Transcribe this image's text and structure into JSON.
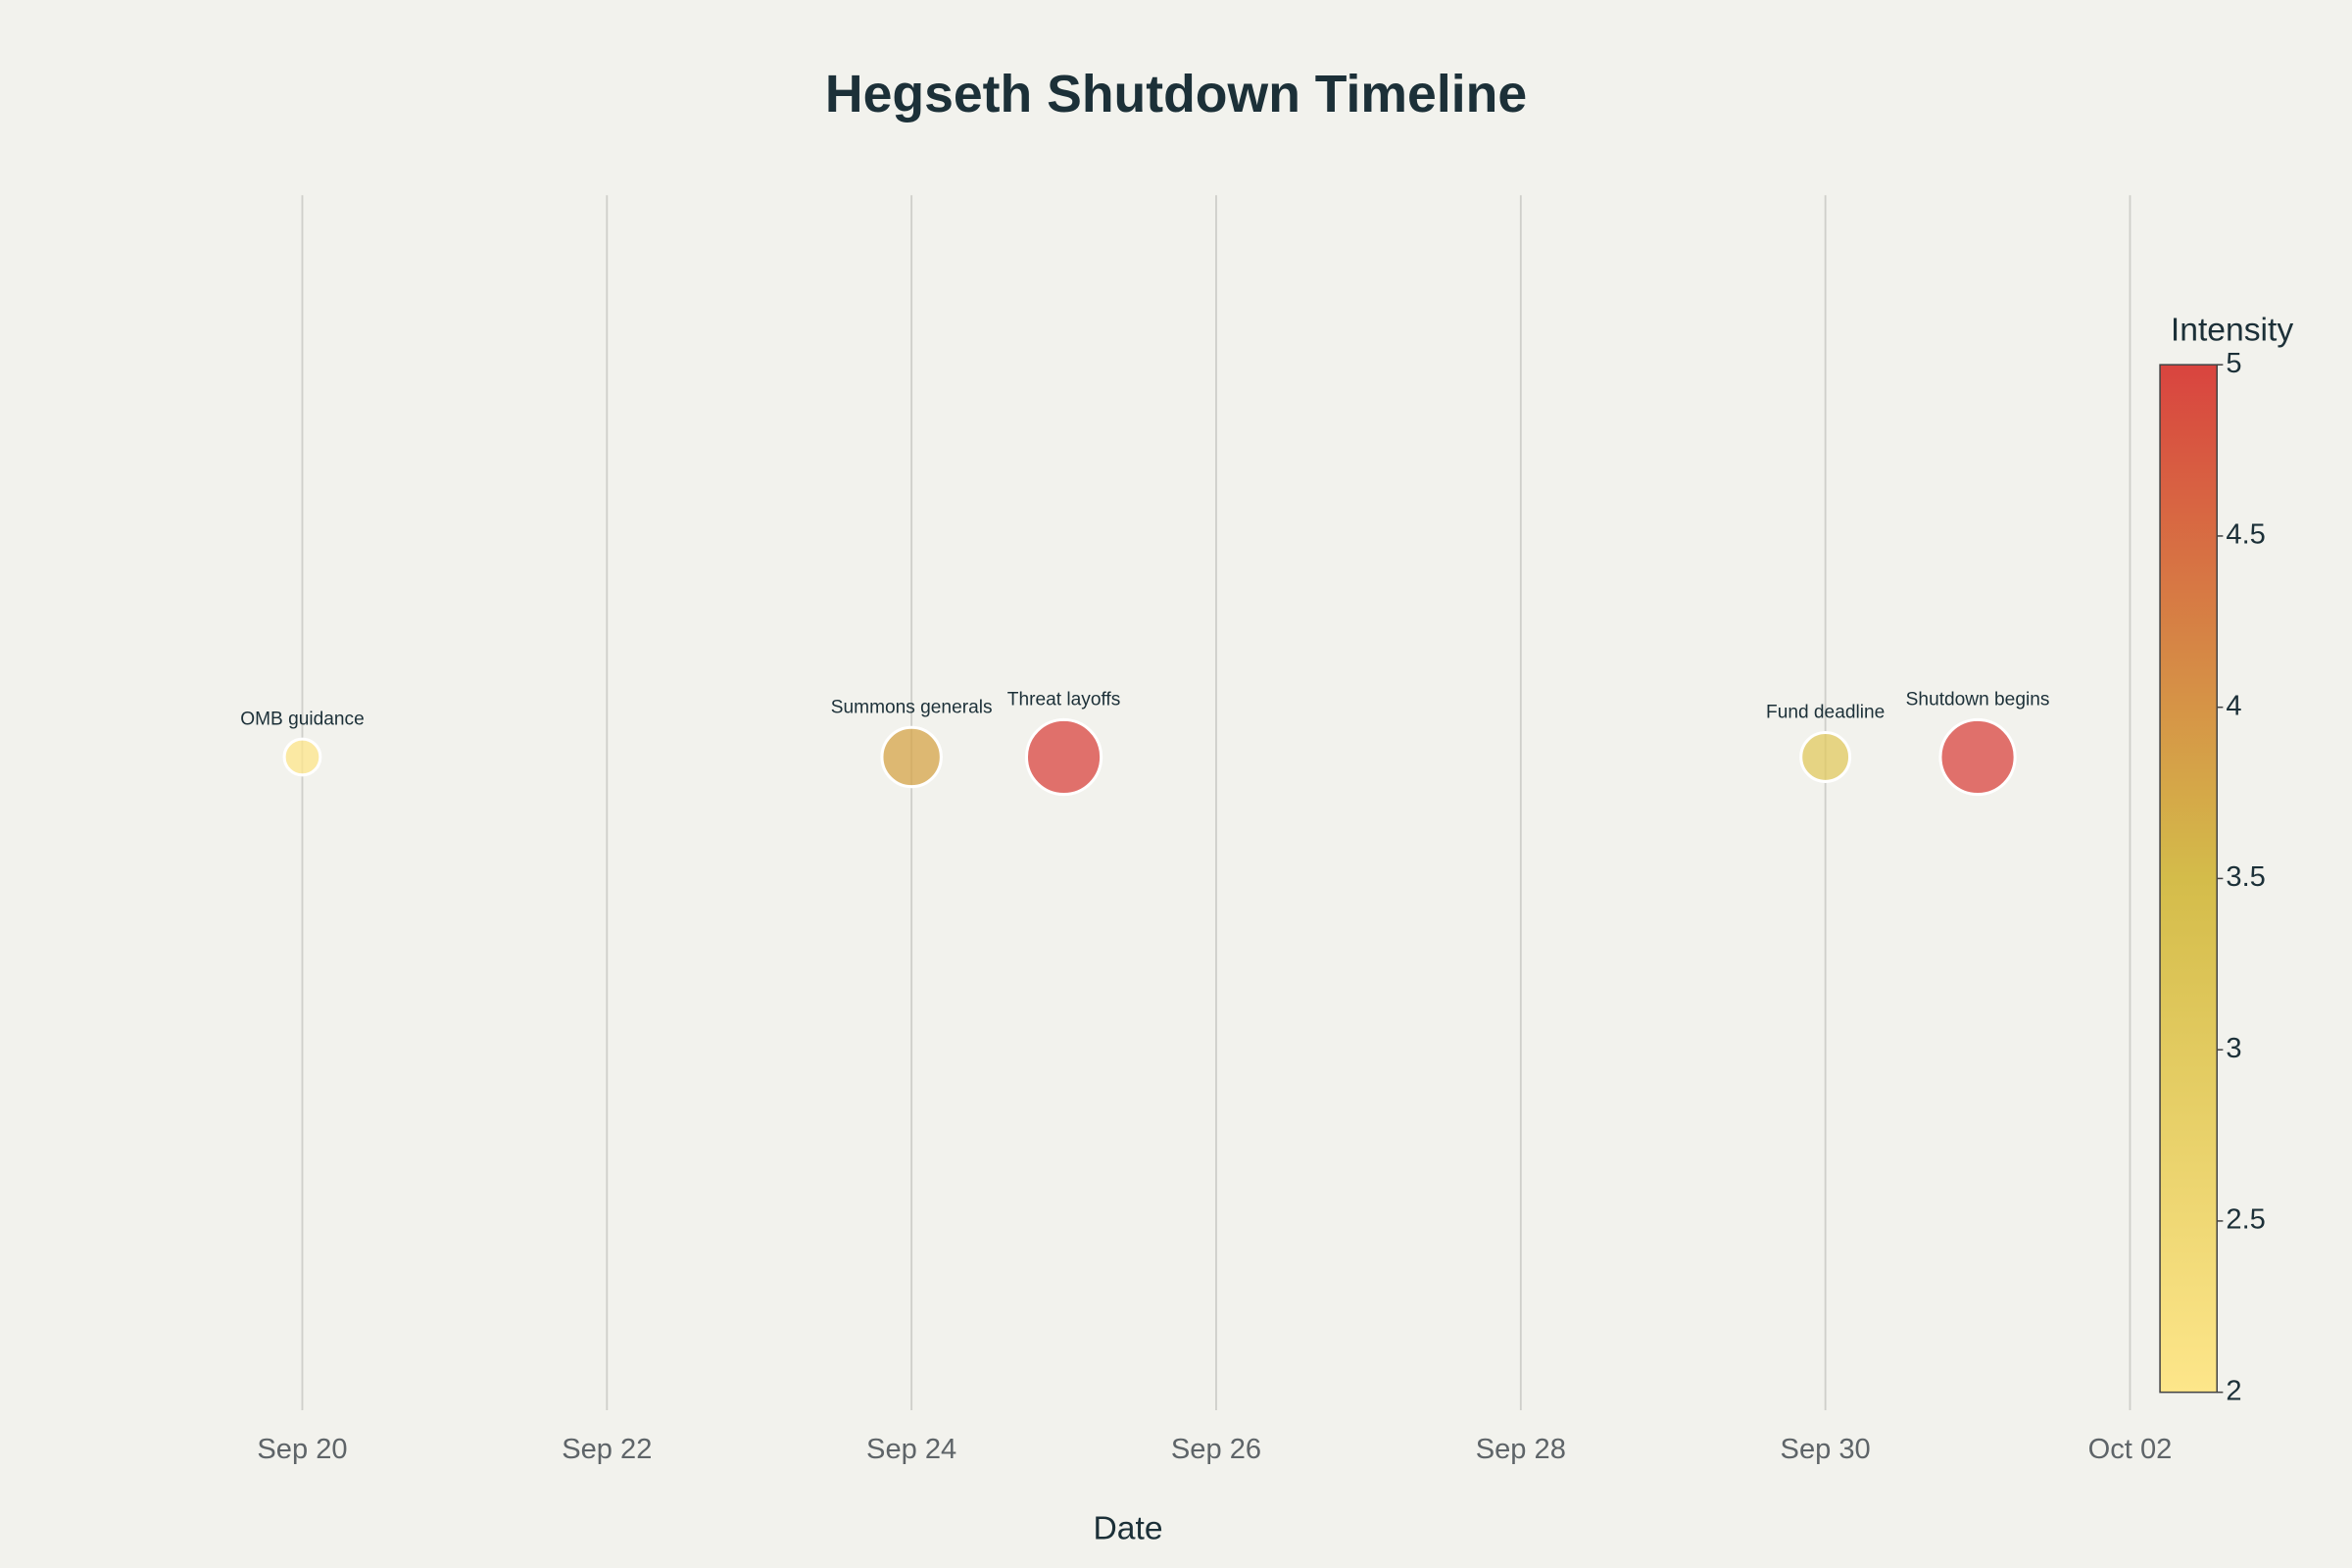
{
  "chart_data": {
    "type": "scatter",
    "title": "Hegseth Shutdown Timeline",
    "x_label": "Date",
    "x": [
      "Sep 20",
      "Sep 24",
      "Sep 25",
      "Sep 30",
      "Oct 01"
    ],
    "y": [
      1,
      1,
      1,
      1,
      1
    ],
    "intensity": [
      2,
      3.8,
      5,
      3,
      5
    ],
    "labels": [
      "OMB guidance",
      "Summons generals",
      "Threat layoffs",
      "Fund deadline",
      "Shutdown begins"
    ],
    "xlim": [
      "Sep 19",
      "Oct 02"
    ],
    "xticks": [
      "Sep 20",
      "Sep 22",
      "Sep 24",
      "Sep 26",
      "Sep 28",
      "Sep 30",
      "Oct 02"
    ],
    "ylim": [
      0,
      1.86
    ],
    "grid": true,
    "colorbar": {
      "title": "Intensity",
      "lim": [
        2,
        5
      ],
      "ticks": [
        2,
        2.5,
        3,
        3.5,
        4,
        4.5,
        5
      ],
      "colorscale": [
        "#fde68a",
        "#d4bc4a",
        "#d9443f"
      ]
    }
  }
}
